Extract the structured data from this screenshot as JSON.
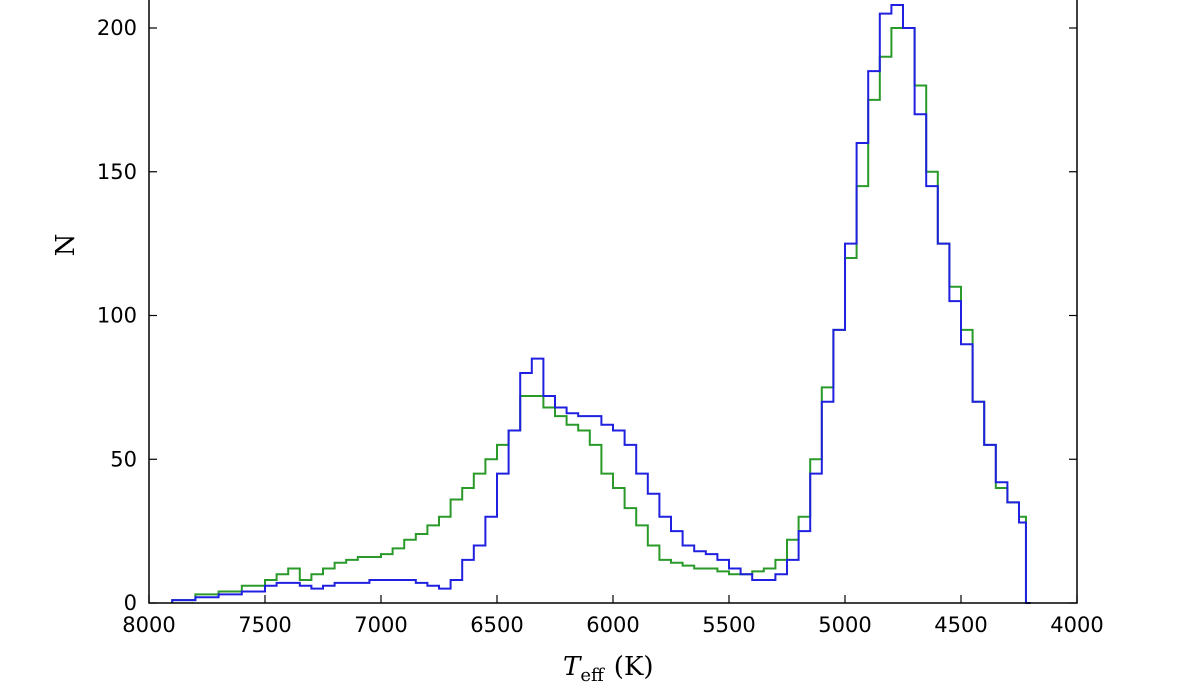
{
  "chart_data": {
    "type": "line",
    "title": "",
    "xlabel": {
      "symbol": "T",
      "subscript": "eff",
      "unit": "(K)"
    },
    "ylabel": "N",
    "xlim": [
      8000,
      4000
    ],
    "ylim": [
      0,
      210
    ],
    "x_ticks": [
      8000,
      7500,
      7000,
      6500,
      6000,
      5500,
      5000,
      4500,
      4000
    ],
    "y_ticks": [
      0,
      50,
      100,
      150,
      200
    ],
    "grid": false,
    "legend": "none",
    "bin_width": 20,
    "series": [
      {
        "color": "#2a9a2a",
        "x": [
          7900,
          7800,
          7700,
          7600,
          7500,
          7450,
          7400,
          7350,
          7300,
          7250,
          7200,
          7150,
          7100,
          7050,
          7000,
          6950,
          6900,
          6850,
          6800,
          6750,
          6700,
          6650,
          6600,
          6550,
          6500,
          6450,
          6400,
          6350,
          6300,
          6250,
          6200,
          6150,
          6100,
          6050,
          6000,
          5950,
          5900,
          5850,
          5800,
          5750,
          5700,
          5650,
          5600,
          5550,
          5500,
          5450,
          5400,
          5350,
          5300,
          5250,
          5200,
          5150,
          5100,
          5050,
          5000,
          4950,
          4900,
          4850,
          4800,
          4750,
          4700,
          4650,
          4600,
          4550,
          4500,
          4450,
          4400,
          4350,
          4300,
          4250,
          4220
        ],
        "y": [
          1,
          3,
          4,
          6,
          8,
          10,
          12,
          8,
          10,
          12,
          14,
          15,
          16,
          16,
          17,
          19,
          22,
          24,
          27,
          30,
          36,
          40,
          45,
          50,
          55,
          60,
          72,
          72,
          68,
          65,
          62,
          60,
          55,
          45,
          40,
          33,
          27,
          20,
          15,
          14,
          13,
          12,
          12,
          11,
          10,
          10,
          11,
          12,
          15,
          22,
          30,
          50,
          75,
          95,
          120,
          145,
          175,
          190,
          200,
          200,
          180,
          150,
          125,
          110,
          95,
          70,
          55,
          40,
          35,
          30,
          0
        ]
      },
      {
        "color": "#2020e0",
        "x": [
          7900,
          7800,
          7700,
          7600,
          7500,
          7450,
          7400,
          7350,
          7300,
          7250,
          7200,
          7150,
          7100,
          7050,
          7000,
          6950,
          6900,
          6850,
          6800,
          6750,
          6700,
          6650,
          6600,
          6550,
          6500,
          6450,
          6400,
          6350,
          6300,
          6250,
          6200,
          6150,
          6100,
          6050,
          6000,
          5950,
          5900,
          5850,
          5800,
          5750,
          5700,
          5650,
          5600,
          5550,
          5500,
          5450,
          5400,
          5350,
          5300,
          5250,
          5200,
          5150,
          5100,
          5050,
          5000,
          4950,
          4900,
          4850,
          4800,
          4750,
          4700,
          4650,
          4600,
          4550,
          4500,
          4450,
          4400,
          4350,
          4300,
          4250,
          4220
        ],
        "y": [
          1,
          2,
          3,
          4,
          6,
          7,
          7,
          6,
          5,
          6,
          7,
          7,
          7,
          8,
          8,
          8,
          8,
          7,
          6,
          5,
          8,
          15,
          20,
          30,
          45,
          60,
          80,
          85,
          72,
          68,
          66,
          65,
          65,
          62,
          60,
          55,
          45,
          38,
          30,
          25,
          20,
          18,
          17,
          15,
          12,
          10,
          8,
          8,
          10,
          15,
          25,
          45,
          70,
          95,
          125,
          160,
          185,
          205,
          208,
          200,
          170,
          145,
          125,
          105,
          90,
          70,
          55,
          42,
          35,
          28,
          0
        ]
      }
    ]
  }
}
